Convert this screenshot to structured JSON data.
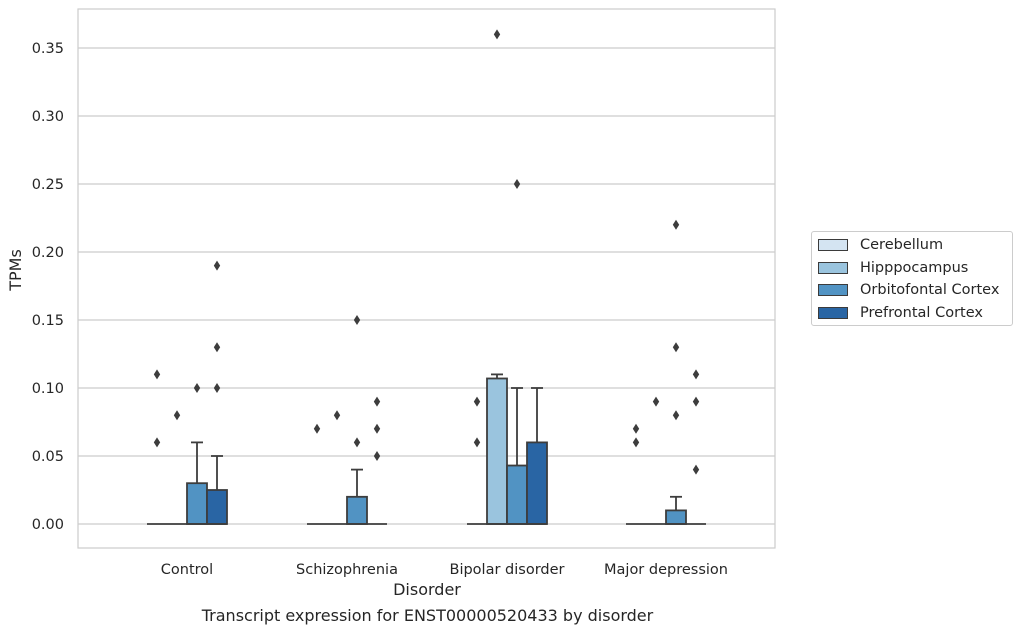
{
  "chart_data": {
    "type": "box",
    "title": "",
    "caption": "Transcript expression for ENST00000520433 by disorder",
    "xlabel": "Disorder",
    "ylabel": "TPMs",
    "ylim": [
      -0.018,
      0.38
    ],
    "yticks": [
      "0.00",
      "0.05",
      "0.10",
      "0.15",
      "0.20",
      "0.25",
      "0.30",
      "0.35"
    ],
    "categories": [
      "Control",
      "Schizophrenia",
      "Bipolar disorder",
      "Major depression"
    ],
    "grid": "horizontal",
    "legend_position": "right",
    "series": [
      {
        "name": "Cerebellum",
        "color": "#d4e4f2",
        "boxes": [
          {
            "q1": 0,
            "median": 0,
            "q3": 0,
            "whisker_low": 0,
            "whisker_high": 0,
            "outliers": [
              0.06,
              0.11
            ]
          },
          {
            "q1": 0,
            "median": 0,
            "q3": 0,
            "whisker_low": 0,
            "whisker_high": 0,
            "outliers": [
              0.07
            ]
          },
          {
            "q1": 0,
            "median": 0,
            "q3": 0,
            "whisker_low": 0,
            "whisker_high": 0,
            "outliers": [
              0.06,
              0.09
            ]
          },
          {
            "q1": 0,
            "median": 0,
            "q3": 0,
            "whisker_low": 0,
            "whisker_high": 0,
            "outliers": [
              0.06,
              0.07
            ]
          }
        ]
      },
      {
        "name": "Hipppocampus",
        "color": "#9ac4de",
        "boxes": [
          {
            "q1": 0,
            "median": 0,
            "q3": 0,
            "whisker_low": 0,
            "whisker_high": 0,
            "outliers": [
              0.08
            ]
          },
          {
            "q1": 0,
            "median": 0,
            "q3": 0,
            "whisker_low": 0,
            "whisker_high": 0,
            "outliers": [
              0.08
            ]
          },
          {
            "q1": 0,
            "median": 0,
            "q3": 0.107,
            "whisker_low": 0,
            "whisker_high": 0.11,
            "outliers": [
              0.36
            ]
          },
          {
            "q1": 0,
            "median": 0,
            "q3": 0,
            "whisker_low": 0,
            "whisker_high": 0,
            "outliers": [
              0.09
            ]
          }
        ]
      },
      {
        "name": "Orbitofontal Cortex",
        "color": "#5193c3",
        "boxes": [
          {
            "q1": 0,
            "median": 0,
            "q3": 0.03,
            "whisker_low": 0,
            "whisker_high": 0.06,
            "outliers": [
              0.1
            ]
          },
          {
            "q1": 0,
            "median": 0,
            "q3": 0.02,
            "whisker_low": 0,
            "whisker_high": 0.04,
            "outliers": [
              0.06,
              0.15
            ]
          },
          {
            "q1": 0,
            "median": 0,
            "q3": 0.043,
            "whisker_low": 0,
            "whisker_high": 0.1,
            "outliers": [
              0.25
            ]
          },
          {
            "q1": 0,
            "median": 0,
            "q3": 0.01,
            "whisker_low": 0,
            "whisker_high": 0.02,
            "outliers": [
              0.08,
              0.13,
              0.22
            ]
          }
        ]
      },
      {
        "name": "Prefrontal Cortex",
        "color": "#2965a4",
        "boxes": [
          {
            "q1": 0,
            "median": 0,
            "q3": 0.025,
            "whisker_low": 0,
            "whisker_high": 0.05,
            "outliers": [
              0.1,
              0.13,
              0.19
            ]
          },
          {
            "q1": 0,
            "median": 0,
            "q3": 0,
            "whisker_low": 0,
            "whisker_high": 0,
            "outliers": [
              0.05,
              0.07,
              0.09
            ]
          },
          {
            "q1": 0,
            "median": 0,
            "q3": 0.06,
            "whisker_low": 0,
            "whisker_high": 0.1,
            "outliers": []
          },
          {
            "q1": 0,
            "median": 0,
            "q3": 0,
            "whisker_low": 0,
            "whisker_high": 0,
            "outliers": [
              0.04,
              0.09,
              0.11
            ]
          }
        ]
      }
    ]
  }
}
